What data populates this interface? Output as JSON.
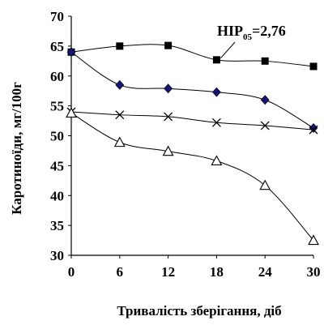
{
  "chart_data": {
    "type": "line",
    "x": [
      0,
      6,
      12,
      18,
      24,
      30
    ],
    "xlabel": "Тривалість зберігання, діб",
    "ylabel": "Каротиноїди, мг/100г",
    "xlim": [
      0,
      30
    ],
    "ylim": [
      30,
      70
    ],
    "x_ticks": [
      "0",
      "6",
      "12",
      "18",
      "24",
      "30"
    ],
    "y_ticks": [
      "30",
      "35",
      "40",
      "45",
      "50",
      "55",
      "60",
      "65",
      "70"
    ],
    "grid": false,
    "series": [
      {
        "marker": "square",
        "values": [
          64.0,
          65.0,
          65.1,
          62.7,
          62.5,
          61.6
        ]
      },
      {
        "marker": "diamond",
        "values": [
          64.0,
          58.5,
          57.9,
          57.3,
          56.0,
          51.3
        ]
      },
      {
        "marker": "x",
        "values": [
          54.0,
          53.5,
          53.2,
          52.2,
          51.7,
          51.0
        ]
      },
      {
        "marker": "triangle-open",
        "values": [
          53.8,
          48.9,
          47.4,
          45.8,
          41.7,
          32.5
        ]
      }
    ],
    "annotation": {
      "main": "HIP",
      "subscript": "05",
      "suffix": "=2,76",
      "anchor_series": 0,
      "anchor_index": 3
    }
  }
}
